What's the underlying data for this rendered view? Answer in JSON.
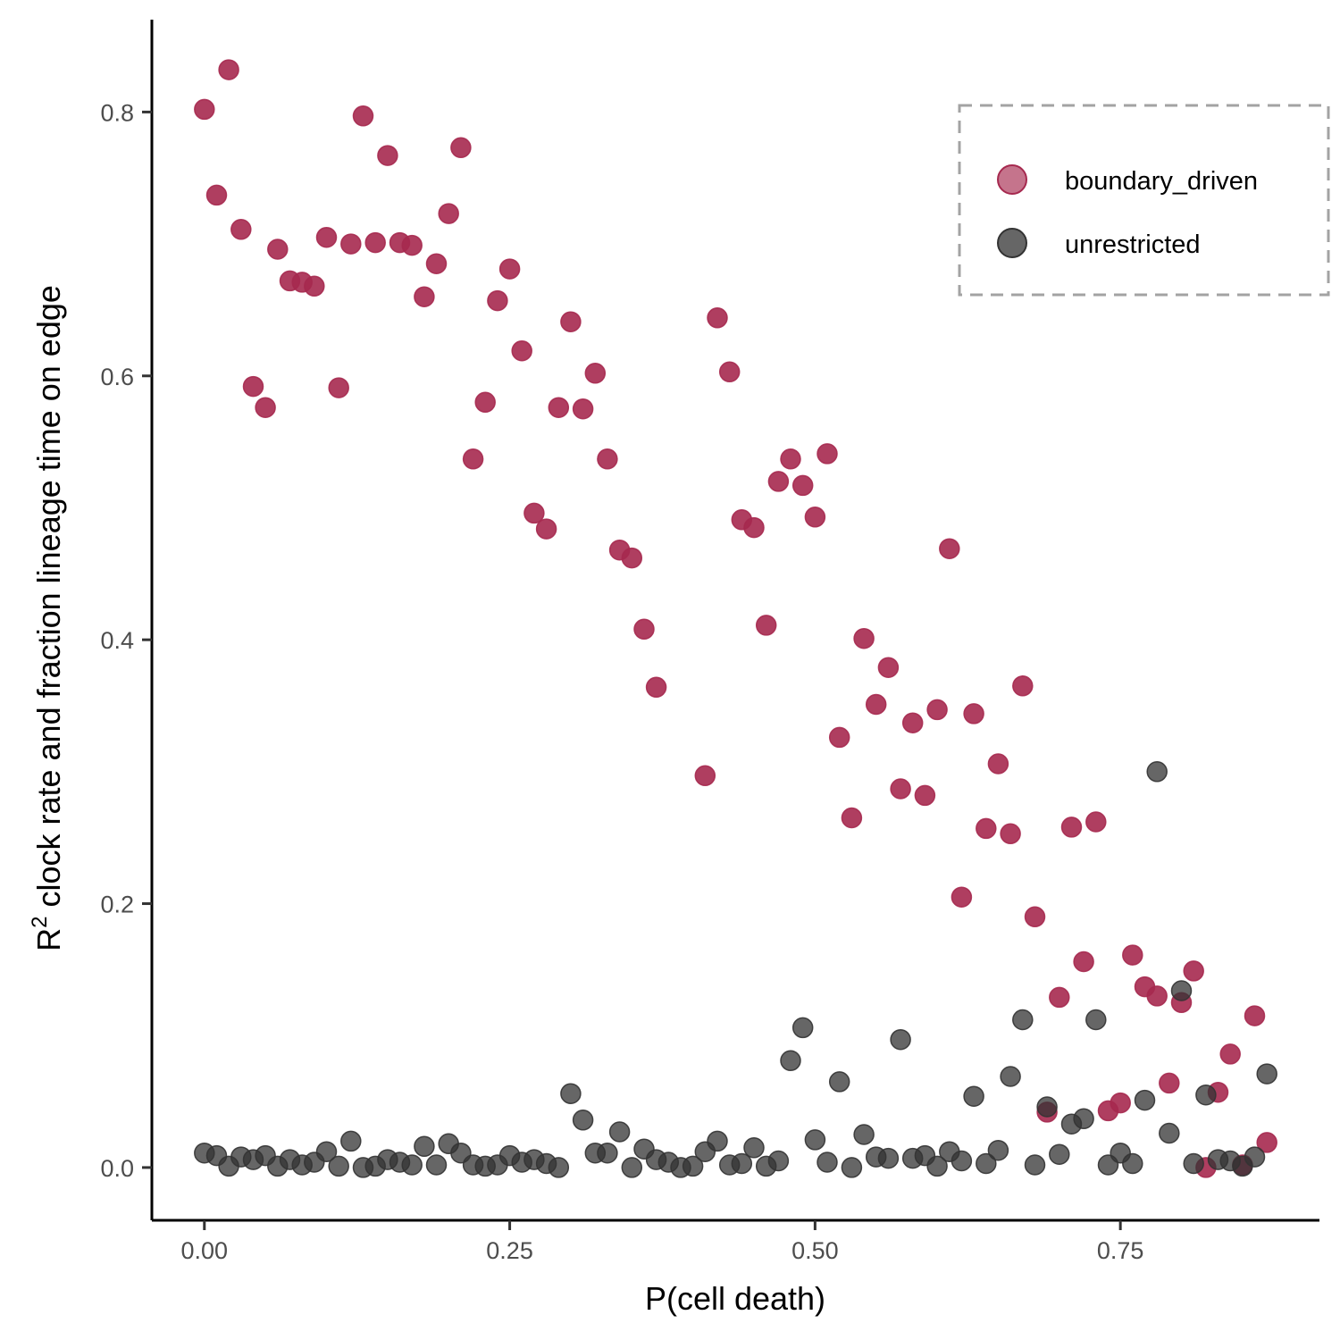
{
  "chart_data": {
    "type": "scatter",
    "xlabel": "P(cell death)",
    "ylabel": {
      "prefix": "R",
      "superscript": "2",
      "rest": " clock rate and fraction lineage time on edge"
    },
    "xlim": [
      -0.043,
      0.913
    ],
    "ylim": [
      -0.04,
      0.87
    ],
    "x_ticks": [
      0.0,
      0.25,
      0.5,
      0.75
    ],
    "x_tick_labels": [
      "0.00",
      "0.25",
      "0.50",
      "0.75"
    ],
    "y_ticks": [
      0.0,
      0.2,
      0.4,
      0.6,
      0.8
    ],
    "y_tick_labels": [
      "0.0",
      "0.2",
      "0.4",
      "0.6",
      "0.8"
    ],
    "grid": false,
    "legend": {
      "position": "top-right",
      "border": "dashed"
    },
    "series": [
      {
        "name": "boundary_driven",
        "color": "#a6294f",
        "points": [
          [
            0.0,
            0.802
          ],
          [
            0.01,
            0.737
          ],
          [
            0.02,
            0.832
          ],
          [
            0.03,
            0.711
          ],
          [
            0.04,
            0.592
          ],
          [
            0.05,
            0.576
          ],
          [
            0.06,
            0.696
          ],
          [
            0.07,
            0.672
          ],
          [
            0.08,
            0.671
          ],
          [
            0.09,
            0.668
          ],
          [
            0.1,
            0.705
          ],
          [
            0.11,
            0.591
          ],
          [
            0.12,
            0.7
          ],
          [
            0.13,
            0.797
          ],
          [
            0.14,
            0.701
          ],
          [
            0.15,
            0.767
          ],
          [
            0.16,
            0.701
          ],
          [
            0.17,
            0.699
          ],
          [
            0.18,
            0.66
          ],
          [
            0.19,
            0.685
          ],
          [
            0.2,
            0.723
          ],
          [
            0.21,
            0.773
          ],
          [
            0.22,
            0.537
          ],
          [
            0.23,
            0.58
          ],
          [
            0.24,
            0.657
          ],
          [
            0.25,
            0.681
          ],
          [
            0.26,
            0.619
          ],
          [
            0.27,
            0.496
          ],
          [
            0.28,
            0.484
          ],
          [
            0.29,
            0.576
          ],
          [
            0.3,
            0.641
          ],
          [
            0.31,
            0.575
          ],
          [
            0.32,
            0.602
          ],
          [
            0.33,
            0.537
          ],
          [
            0.34,
            0.468
          ],
          [
            0.35,
            0.462
          ],
          [
            0.36,
            0.408
          ],
          [
            0.37,
            0.364
          ],
          [
            0.41,
            0.297
          ],
          [
            0.42,
            0.644
          ],
          [
            0.43,
            0.603
          ],
          [
            0.44,
            0.491
          ],
          [
            0.45,
            0.485
          ],
          [
            0.46,
            0.411
          ],
          [
            0.47,
            0.52
          ],
          [
            0.48,
            0.537
          ],
          [
            0.49,
            0.517
          ],
          [
            0.5,
            0.493
          ],
          [
            0.51,
            0.541
          ],
          [
            0.52,
            0.326
          ],
          [
            0.53,
            0.265
          ],
          [
            0.54,
            0.401
          ],
          [
            0.55,
            0.351
          ],
          [
            0.56,
            0.379
          ],
          [
            0.57,
            0.287
          ],
          [
            0.58,
            0.337
          ],
          [
            0.59,
            0.282
          ],
          [
            0.6,
            0.347
          ],
          [
            0.61,
            0.469
          ],
          [
            0.62,
            0.205
          ],
          [
            0.63,
            0.344
          ],
          [
            0.64,
            0.257
          ],
          [
            0.65,
            0.306
          ],
          [
            0.66,
            0.253
          ],
          [
            0.67,
            0.365
          ],
          [
            0.68,
            0.19
          ],
          [
            0.69,
            0.042
          ],
          [
            0.7,
            0.129
          ],
          [
            0.71,
            0.258
          ],
          [
            0.72,
            0.156
          ],
          [
            0.73,
            0.262
          ],
          [
            0.74,
            0.043
          ],
          [
            0.75,
            0.049
          ],
          [
            0.76,
            0.161
          ],
          [
            0.77,
            0.137
          ],
          [
            0.78,
            0.13
          ],
          [
            0.79,
            0.064
          ],
          [
            0.8,
            0.125
          ],
          [
            0.81,
            0.149
          ],
          [
            0.82,
            0.0
          ],
          [
            0.83,
            0.057
          ],
          [
            0.84,
            0.086
          ],
          [
            0.85,
            0.002
          ],
          [
            0.86,
            0.115
          ],
          [
            0.87,
            0.019
          ]
        ]
      },
      {
        "name": "unrestricted",
        "color": "#333333",
        "points": [
          [
            0.0,
            0.011
          ],
          [
            0.01,
            0.009
          ],
          [
            0.02,
            0.001
          ],
          [
            0.03,
            0.008
          ],
          [
            0.04,
            0.006
          ],
          [
            0.05,
            0.009
          ],
          [
            0.06,
            0.001
          ],
          [
            0.07,
            0.006
          ],
          [
            0.08,
            0.002
          ],
          [
            0.09,
            0.004
          ],
          [
            0.1,
            0.012
          ],
          [
            0.11,
            0.001
          ],
          [
            0.12,
            0.02
          ],
          [
            0.13,
            0.0
          ],
          [
            0.14,
            0.001
          ],
          [
            0.15,
            0.006
          ],
          [
            0.16,
            0.004
          ],
          [
            0.17,
            0.002
          ],
          [
            0.18,
            0.016
          ],
          [
            0.19,
            0.002
          ],
          [
            0.2,
            0.018
          ],
          [
            0.21,
            0.011
          ],
          [
            0.22,
            0.002
          ],
          [
            0.23,
            0.001
          ],
          [
            0.24,
            0.002
          ],
          [
            0.25,
            0.009
          ],
          [
            0.26,
            0.004
          ],
          [
            0.27,
            0.006
          ],
          [
            0.28,
            0.003
          ],
          [
            0.29,
            0.0
          ],
          [
            0.3,
            0.056
          ],
          [
            0.31,
            0.036
          ],
          [
            0.32,
            0.011
          ],
          [
            0.33,
            0.011
          ],
          [
            0.34,
            0.027
          ],
          [
            0.35,
            0.0
          ],
          [
            0.36,
            0.014
          ],
          [
            0.37,
            0.006
          ],
          [
            0.38,
            0.004
          ],
          [
            0.39,
            0.0
          ],
          [
            0.4,
            0.001
          ],
          [
            0.41,
            0.012
          ],
          [
            0.42,
            0.02
          ],
          [
            0.43,
            0.002
          ],
          [
            0.44,
            0.003
          ],
          [
            0.45,
            0.015
          ],
          [
            0.46,
            0.001
          ],
          [
            0.47,
            0.005
          ],
          [
            0.48,
            0.081
          ],
          [
            0.49,
            0.106
          ],
          [
            0.5,
            0.021
          ],
          [
            0.51,
            0.004
          ],
          [
            0.52,
            0.065
          ],
          [
            0.53,
            0.0
          ],
          [
            0.54,
            0.025
          ],
          [
            0.55,
            0.008
          ],
          [
            0.56,
            0.007
          ],
          [
            0.57,
            0.097
          ],
          [
            0.58,
            0.007
          ],
          [
            0.59,
            0.009
          ],
          [
            0.6,
            0.001
          ],
          [
            0.61,
            0.012
          ],
          [
            0.62,
            0.005
          ],
          [
            0.63,
            0.054
          ],
          [
            0.64,
            0.003
          ],
          [
            0.65,
            0.013
          ],
          [
            0.66,
            0.069
          ],
          [
            0.67,
            0.112
          ],
          [
            0.68,
            0.002
          ],
          [
            0.69,
            0.046
          ],
          [
            0.7,
            0.01
          ],
          [
            0.71,
            0.033
          ],
          [
            0.72,
            0.037
          ],
          [
            0.73,
            0.112
          ],
          [
            0.74,
            0.002
          ],
          [
            0.75,
            0.011
          ],
          [
            0.76,
            0.003
          ],
          [
            0.77,
            0.051
          ],
          [
            0.78,
            0.3
          ],
          [
            0.79,
            0.026
          ],
          [
            0.8,
            0.134
          ],
          [
            0.81,
            0.003
          ],
          [
            0.82,
            0.055
          ],
          [
            0.83,
            0.006
          ],
          [
            0.84,
            0.005
          ],
          [
            0.85,
            0.001
          ],
          [
            0.86,
            0.008
          ],
          [
            0.87,
            0.071
          ]
        ]
      }
    ]
  }
}
